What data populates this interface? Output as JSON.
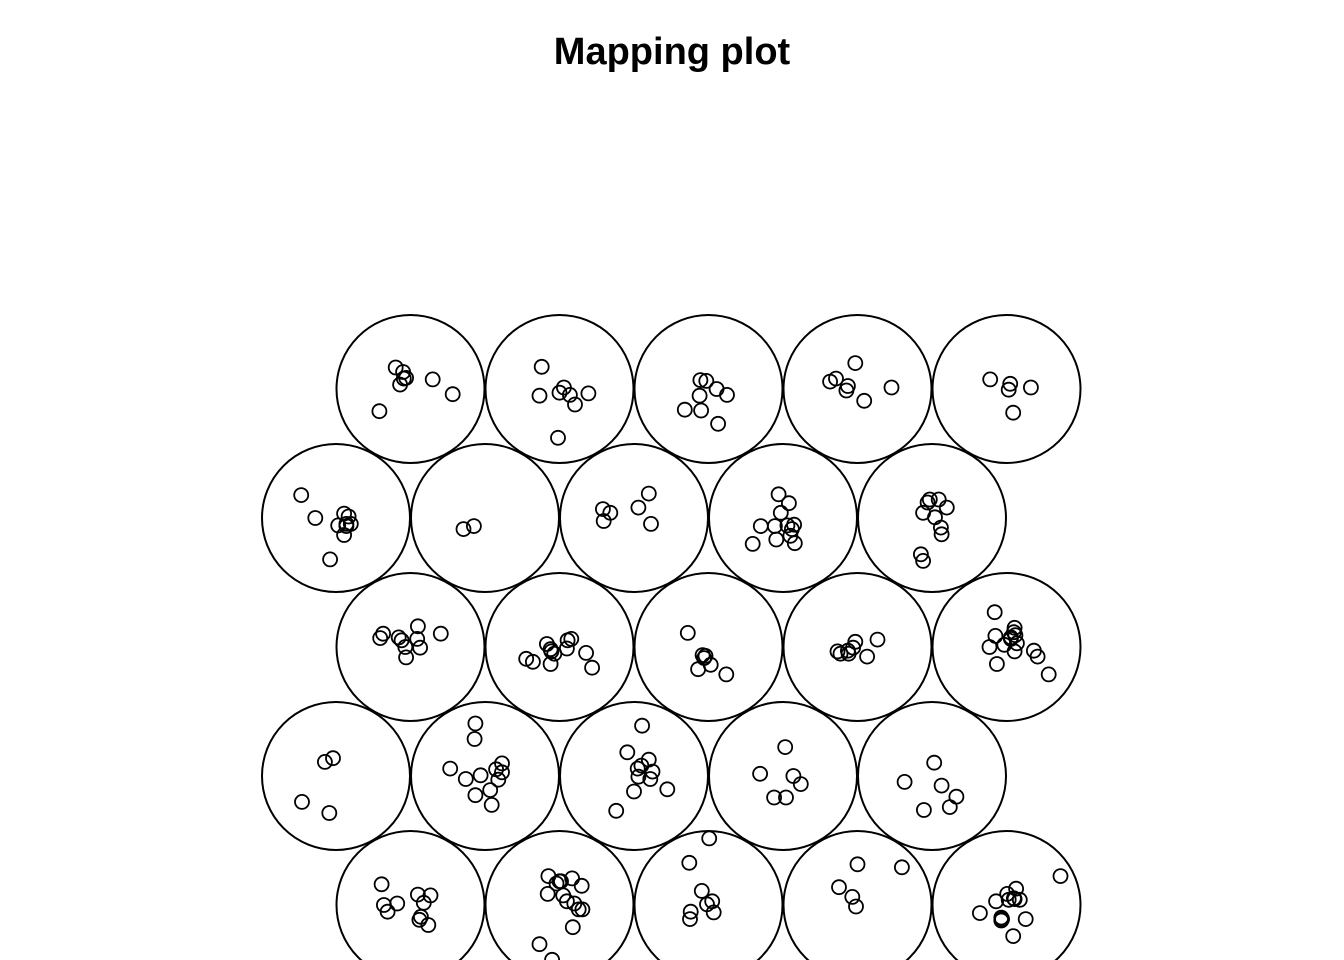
{
  "chart_data": {
    "type": "scatter",
    "title": "Mapping plot",
    "grid": {
      "xdim": 5,
      "ydim": 5,
      "topology": "hexagonal",
      "units": [
        {
          "x": 1.5,
          "y": 5,
          "points": [
            [
              -0.2,
              0.29
            ],
            [
              -0.1,
              0.23
            ],
            [
              -0.06,
              0.15
            ],
            [
              -0.09,
              0.14
            ],
            [
              -0.14,
              0.06
            ],
            [
              0.3,
              0.13
            ],
            [
              0.57,
              -0.07
            ],
            [
              -0.42,
              -0.3
            ]
          ]
        },
        {
          "x": 2.5,
          "y": 5,
          "points": [
            [
              -0.24,
              0.3
            ],
            [
              -0.27,
              -0.09
            ],
            [
              0.0,
              -0.05
            ],
            [
              0.06,
              0.02
            ],
            [
              0.14,
              -0.08
            ],
            [
              0.21,
              -0.21
            ],
            [
              0.39,
              -0.06
            ],
            [
              -0.02,
              -0.66
            ]
          ]
        },
        {
          "x": 3.5,
          "y": 5,
          "points": [
            [
              -0.11,
              0.12
            ],
            [
              -0.03,
              0.11
            ],
            [
              0.11,
              0.0
            ],
            [
              0.25,
              -0.08
            ],
            [
              -0.12,
              -0.09
            ],
            [
              -0.1,
              -0.29
            ],
            [
              -0.32,
              -0.28
            ],
            [
              0.13,
              -0.47
            ]
          ]
        },
        {
          "x": 4.5,
          "y": 5,
          "points": [
            [
              -0.29,
              0.14
            ],
            [
              -0.37,
              0.1
            ],
            [
              -0.13,
              0.04
            ],
            [
              -0.15,
              -0.02
            ],
            [
              -0.03,
              0.35
            ],
            [
              0.09,
              -0.16
            ],
            [
              0.46,
              0.02
            ]
          ]
        },
        {
          "x": 5.5,
          "y": 5,
          "points": [
            [
              -0.22,
              0.13
            ],
            [
              0.05,
              0.07
            ],
            [
              0.03,
              -0.01
            ],
            [
              0.33,
              0.02
            ],
            [
              0.09,
              -0.32
            ]
          ]
        },
        {
          "x": 1,
          "y": 4,
          "points": [
            [
              -0.47,
              0.31
            ],
            [
              -0.28,
              0.0
            ],
            [
              0.03,
              -0.1
            ],
            [
              0.11,
              0.06
            ],
            [
              0.17,
              0.02
            ],
            [
              0.14,
              -0.11
            ],
            [
              0.2,
              -0.08
            ],
            [
              0.14,
              -0.08
            ],
            [
              0.11,
              -0.23
            ],
            [
              -0.08,
              -0.56
            ]
          ]
        },
        {
          "x": 2,
          "y": 4,
          "points": [
            [
              -0.29,
              -0.15
            ],
            [
              -0.15,
              -0.11
            ]
          ]
        },
        {
          "x": 3,
          "y": 4,
          "points": [
            [
              -0.42,
              0.12
            ],
            [
              -0.32,
              0.07
            ],
            [
              -0.41,
              -0.04
            ],
            [
              0.06,
              0.14
            ],
            [
              0.2,
              0.33
            ],
            [
              0.23,
              -0.08
            ]
          ]
        },
        {
          "x": 4,
          "y": 4,
          "points": [
            [
              -0.06,
              0.32
            ],
            [
              0.08,
              0.2
            ],
            [
              -0.3,
              -0.11
            ],
            [
              -0.11,
              -0.11
            ],
            [
              -0.03,
              0.07
            ],
            [
              0.06,
              -0.1
            ],
            [
              0.12,
              -0.15
            ],
            [
              0.15,
              -0.09
            ],
            [
              0.1,
              -0.24
            ],
            [
              0.16,
              -0.34
            ],
            [
              -0.41,
              -0.35
            ],
            [
              -0.09,
              -0.29
            ]
          ]
        },
        {
          "x": 5,
          "y": 4,
          "points": [
            [
              -0.06,
              0.21
            ],
            [
              -0.03,
              0.25
            ],
            [
              0.09,
              0.25
            ],
            [
              0.2,
              0.14
            ],
            [
              -0.12,
              0.07
            ],
            [
              0.04,
              0.01
            ],
            [
              0.12,
              -0.13
            ],
            [
              0.13,
              -0.22
            ],
            [
              -0.15,
              -0.49
            ],
            [
              -0.12,
              -0.58
            ]
          ]
        },
        {
          "x": 1.5,
          "y": 3,
          "points": [
            [
              -0.37,
              0.18
            ],
            [
              -0.41,
              0.12
            ],
            [
              -0.12,
              0.09
            ],
            [
              -0.16,
              0.13
            ],
            [
              0.1,
              0.28
            ],
            [
              -0.07,
              0.0
            ],
            [
              -0.06,
              -0.14
            ],
            [
              0.13,
              -0.01
            ],
            [
              0.09,
              0.11
            ],
            [
              0.41,
              0.18
            ]
          ]
        },
        {
          "x": 2.5,
          "y": 3,
          "points": [
            [
              -0.17,
              0.04
            ],
            [
              -0.12,
              -0.03
            ],
            [
              -0.11,
              -0.06
            ],
            [
              -0.07,
              -0.09
            ],
            [
              0.1,
              -0.02
            ],
            [
              -0.45,
              -0.16
            ],
            [
              -0.36,
              -0.2
            ],
            [
              -0.12,
              -0.23
            ],
            [
              0.11,
              0.09
            ],
            [
              0.16,
              0.11
            ],
            [
              0.36,
              -0.08
            ],
            [
              0.44,
              -0.28
            ]
          ]
        },
        {
          "x": 3.5,
          "y": 3,
          "points": [
            [
              -0.28,
              0.19
            ],
            [
              -0.08,
              -0.11
            ],
            [
              -0.04,
              -0.12
            ],
            [
              -0.06,
              -0.15
            ],
            [
              -0.14,
              -0.3
            ],
            [
              0.03,
              -0.24
            ],
            [
              0.24,
              -0.37
            ]
          ]
        },
        {
          "x": 4.5,
          "y": 3,
          "points": [
            [
              -0.27,
              -0.06
            ],
            [
              -0.23,
              -0.09
            ],
            [
              -0.13,
              -0.05
            ],
            [
              -0.12,
              -0.09
            ],
            [
              -0.06,
              -0.01
            ],
            [
              -0.03,
              0.07
            ],
            [
              0.13,
              -0.13
            ],
            [
              0.27,
              0.1
            ]
          ]
        },
        {
          "x": 5.5,
          "y": 3,
          "points": [
            [
              -0.16,
              0.47
            ],
            [
              -0.15,
              0.15
            ],
            [
              -0.23,
              0.0
            ],
            [
              -0.03,
              0.03
            ],
            [
              0.06,
              0.11
            ],
            [
              0.11,
              0.26
            ],
            [
              0.1,
              0.2
            ],
            [
              0.06,
              0.13
            ],
            [
              0.12,
              0.16
            ],
            [
              0.14,
              0.05
            ],
            [
              0.11,
              -0.06
            ],
            [
              0.37,
              -0.05
            ],
            [
              0.42,
              -0.13
            ],
            [
              0.57,
              -0.37
            ],
            [
              -0.13,
              -0.23
            ]
          ]
        },
        {
          "x": 1,
          "y": 2,
          "points": [
            [
              -0.15,
              0.19
            ],
            [
              -0.04,
              0.24
            ],
            [
              -0.46,
              -0.35
            ],
            [
              -0.09,
              -0.5
            ]
          ]
        },
        {
          "x": 2,
          "y": 2,
          "points": [
            [
              -0.13,
              0.71
            ],
            [
              -0.14,
              0.5
            ],
            [
              -0.47,
              0.1
            ],
            [
              -0.26,
              -0.04
            ],
            [
              -0.06,
              0.01
            ],
            [
              0.15,
              0.09
            ],
            [
              0.23,
              0.17
            ],
            [
              0.23,
              0.05
            ],
            [
              0.18,
              -0.05
            ],
            [
              0.07,
              -0.19
            ],
            [
              -0.13,
              -0.26
            ],
            [
              0.09,
              -0.39
            ]
          ]
        },
        {
          "x": 3,
          "y": 2,
          "points": [
            [
              0.11,
              0.68
            ],
            [
              -0.09,
              0.32
            ],
            [
              0.2,
              0.22
            ],
            [
              0.1,
              0.14
            ],
            [
              0.25,
              0.06
            ],
            [
              0.05,
              0.1
            ],
            [
              0.06,
              -0.01
            ],
            [
              0.22,
              -0.04
            ],
            [
              0.45,
              -0.18
            ],
            [
              0.0,
              -0.21
            ],
            [
              -0.24,
              -0.47
            ]
          ]
        },
        {
          "x": 4,
          "y": 2,
          "points": [
            [
              0.03,
              0.39
            ],
            [
              -0.31,
              0.03
            ],
            [
              0.14,
              0.0
            ],
            [
              0.24,
              -0.11
            ],
            [
              -0.12,
              -0.29
            ],
            [
              0.04,
              -0.29
            ]
          ]
        },
        {
          "x": 5,
          "y": 2,
          "points": [
            [
              0.03,
              0.18
            ],
            [
              -0.37,
              -0.08
            ],
            [
              0.13,
              -0.13
            ],
            [
              0.33,
              -0.28
            ],
            [
              -0.11,
              -0.46
            ],
            [
              0.24,
              -0.42
            ]
          ]
        },
        {
          "x": 1.5,
          "y": 1,
          "points": [
            [
              -0.39,
              0.28
            ],
            [
              -0.36,
              0.0
            ],
            [
              -0.31,
              -0.09
            ],
            [
              -0.18,
              0.02
            ],
            [
              0.1,
              0.14
            ],
            [
              0.27,
              0.13
            ],
            [
              0.18,
              0.03
            ],
            [
              0.14,
              -0.16
            ],
            [
              0.12,
              -0.2
            ],
            [
              0.24,
              -0.27
            ]
          ]
        },
        {
          "x": 2.5,
          "y": 1,
          "points": [
            [
              -0.15,
              0.39
            ],
            [
              0.02,
              0.32
            ],
            [
              0.0,
              0.32
            ],
            [
              -0.04,
              0.29
            ],
            [
              0.17,
              0.36
            ],
            [
              0.3,
              0.26
            ],
            [
              -0.16,
              0.15
            ],
            [
              0.05,
              0.13
            ],
            [
              0.1,
              0.05
            ],
            [
              0.2,
              0.02
            ],
            [
              0.31,
              -0.06
            ],
            [
              0.26,
              -0.06
            ],
            [
              0.18,
              -0.3
            ],
            [
              -0.27,
              -0.53
            ],
            [
              -0.1,
              -0.74
            ]
          ]
        },
        {
          "x": 3.5,
          "y": 1,
          "points": [
            [
              -0.26,
              0.57
            ],
            [
              0.01,
              0.9
            ],
            [
              -0.09,
              0.19
            ],
            [
              0.05,
              0.05
            ],
            [
              -0.02,
              0.01
            ],
            [
              0.07,
              -0.1
            ],
            [
              -0.24,
              -0.09
            ],
            [
              -0.25,
              -0.19
            ]
          ]
        },
        {
          "x": 4.5,
          "y": 1,
          "points": [
            [
              0.0,
              0.55
            ],
            [
              0.6,
              0.51
            ],
            [
              -0.25,
              0.24
            ],
            [
              -0.07,
              0.11
            ],
            [
              -0.02,
              -0.02
            ]
          ]
        },
        {
          "x": 5.5,
          "y": 1,
          "points": [
            [
              0.13,
              0.22
            ],
            [
              0.1,
              0.09
            ],
            [
              0.01,
              0.15
            ],
            [
              0.11,
              0.08
            ],
            [
              0.03,
              0.07
            ],
            [
              0.18,
              0.07
            ],
            [
              -0.14,
              0.05
            ],
            [
              -0.36,
              -0.11
            ],
            [
              -0.07,
              -0.17
            ],
            [
              -0.07,
              -0.21
            ],
            [
              -0.06,
              -0.19
            ],
            [
              0.26,
              -0.19
            ],
            [
              0.09,
              -0.42
            ],
            [
              0.73,
              0.39
            ]
          ]
        }
      ]
    },
    "xlim": [
      0.5,
      6
    ],
    "ylim": [
      0.5,
      5.5
    ],
    "xlabel": "",
    "ylabel": "",
    "axes_visible": false,
    "grid_lines": false,
    "legend": "none"
  }
}
